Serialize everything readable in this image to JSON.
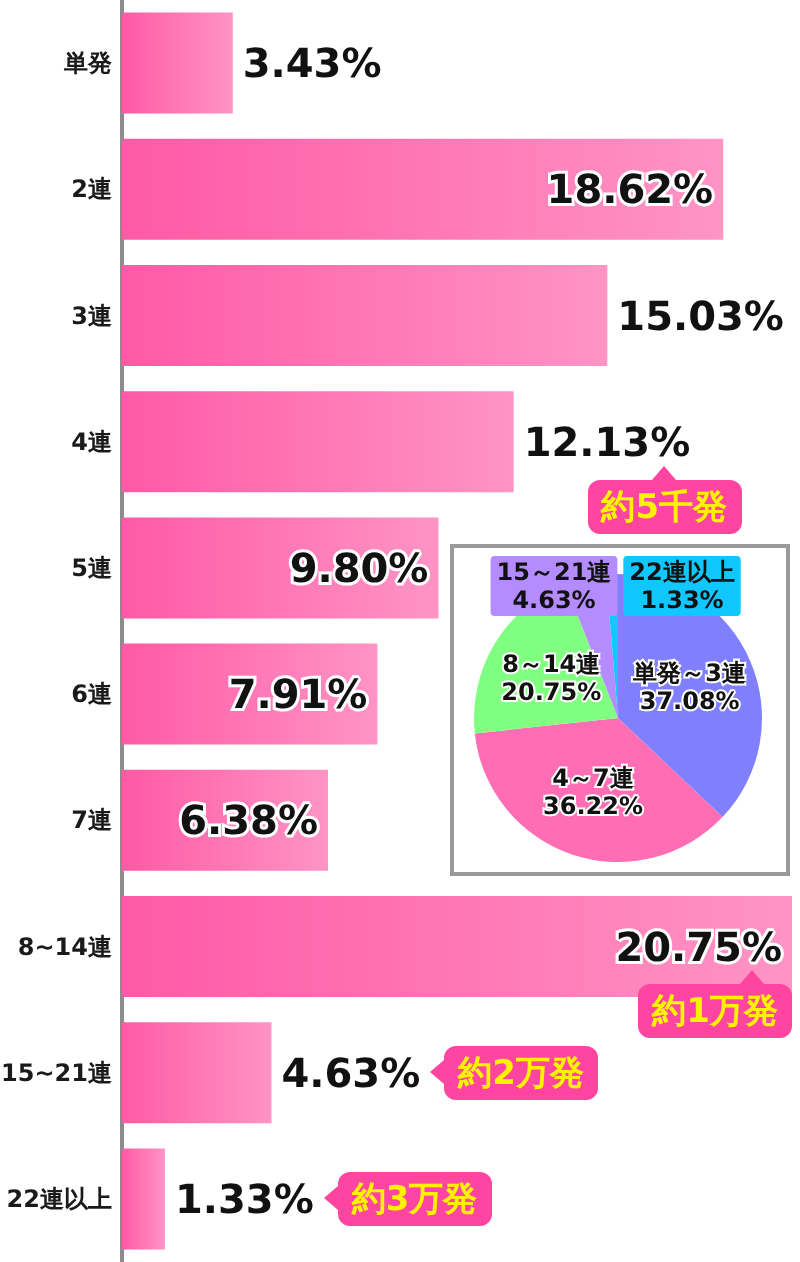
{
  "chart_data": [
    {
      "type": "bar",
      "orientation": "horizontal",
      "categories": [
        "単発",
        "2連",
        "3連",
        "4連",
        "5連",
        "6連",
        "7連",
        "8~14連",
        "15~21連",
        "22連以上"
      ],
      "values": [
        3.43,
        18.62,
        15.03,
        12.13,
        9.8,
        7.91,
        6.38,
        20.75,
        4.63,
        1.33
      ],
      "value_labels": [
        "3.43%",
        "18.62%",
        "15.03%",
        "12.13%",
        "9.80%",
        "7.91%",
        "6.38%",
        "20.75%",
        "4.63%",
        "1.33%"
      ],
      "color": "#ff5aa5",
      "tick_labels": "y",
      "annotations": [
        {
          "text": "約5千発",
          "x": 12.13,
          "y": "4連"
        },
        {
          "text": "約1万発",
          "x": 20.75,
          "y": "8~14連"
        },
        "約2万発",
        "約3万発"
      ]
    },
    {
      "type": "pie",
      "categories": [
        "単発～3連",
        "4～7連",
        "8～14連",
        "15～21連",
        "22連以上"
      ],
      "values": [
        37.08,
        36.22,
        20.75,
        4.63,
        1.33
      ],
      "colors": [
        "#8080ff",
        "#ff6eb4",
        "#80ff80",
        "#b48cff",
        "#10c8ff"
      ],
      "value_labels": [
        "37.08%",
        "36.22%",
        "20.75%",
        "4.63%",
        "1.33%"
      ]
    }
  ]
}
